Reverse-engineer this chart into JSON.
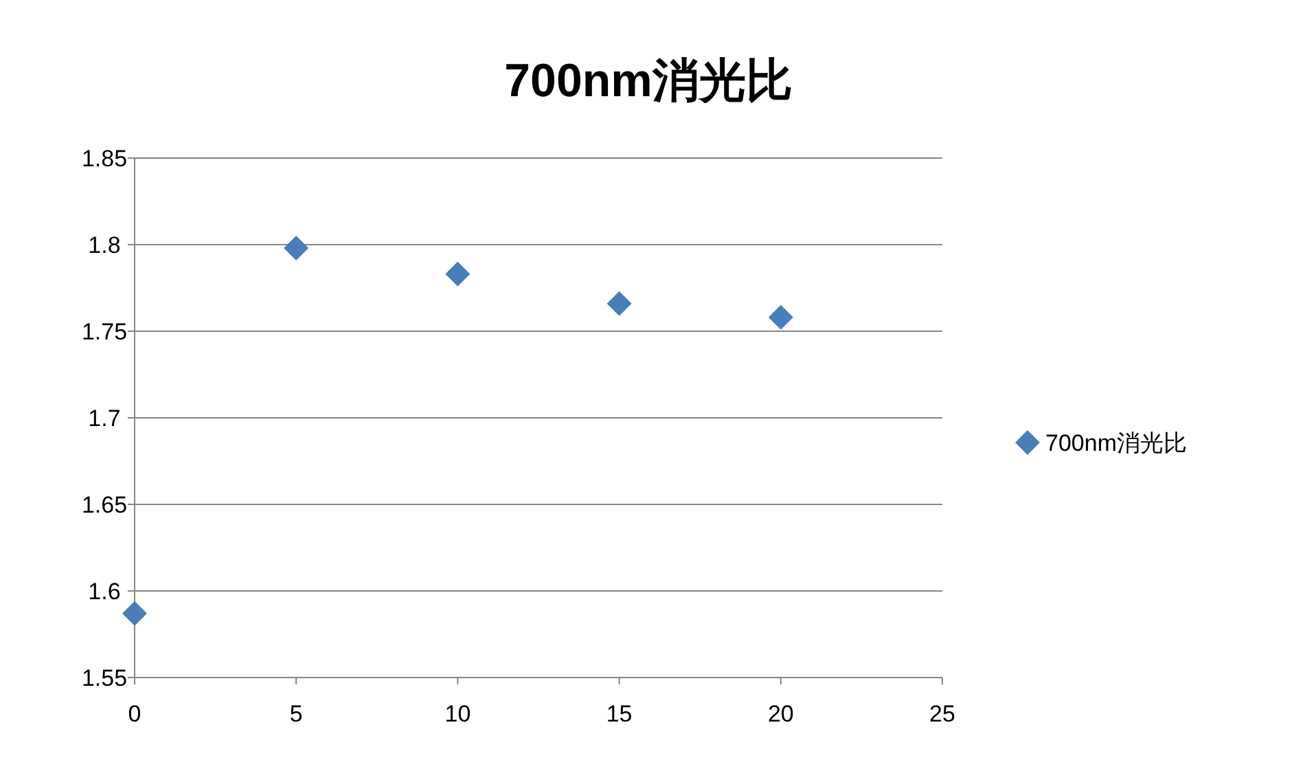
{
  "chart_data": {
    "type": "scatter",
    "title": "700nm消光比",
    "x": [
      0,
      5,
      10,
      15,
      20
    ],
    "series": [
      {
        "name": "700nm消光比",
        "color": "#4a7ebb",
        "values": [
          1.587,
          1.798,
          1.783,
          1.766,
          1.758
        ]
      }
    ],
    "xlim": [
      0,
      25
    ],
    "xticks": [
      0,
      5,
      10,
      15,
      20,
      25
    ],
    "ylim": [
      1.55,
      1.85
    ],
    "yticks": [
      1.55,
      1.6,
      1.65,
      1.7,
      1.75,
      1.8,
      1.85
    ],
    "grid": "y",
    "legend": "right",
    "marker": "diamond"
  }
}
